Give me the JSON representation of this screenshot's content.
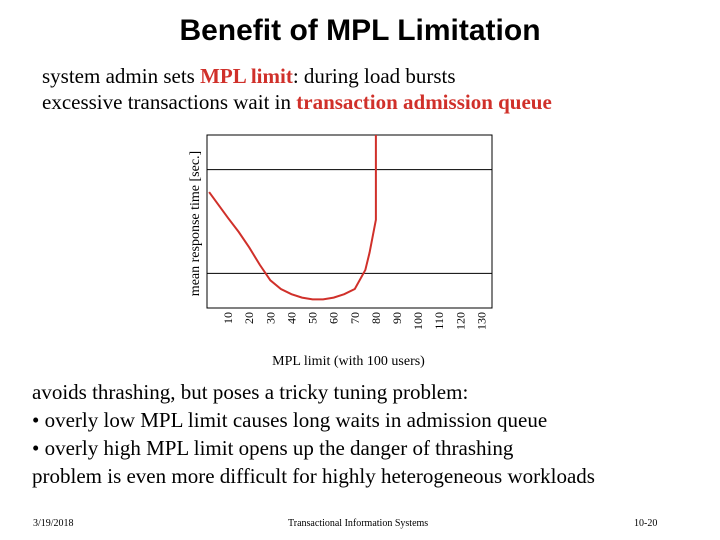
{
  "slide": {
    "title": "Benefit of MPL Limitation",
    "intro": {
      "line1_a": "system admin sets ",
      "line1_hl": "MPL limit",
      "line1_b": ": during load bursts",
      "line2_a": "excessive transactions wait in ",
      "line2_hl": "transaction admission queue"
    },
    "body_lines": [
      "avoids thrashing, but poses a tricky tuning problem:",
      "• overly low MPL limit causes long waits in admission queue",
      "• overly high MPL limit opens up the danger of thrashing",
      "problem is even more difficult for highly heterogeneous workloads"
    ],
    "footer": {
      "date": "3/19/2018",
      "center": "Transactional Information Systems",
      "page": "10-20"
    },
    "colors": {
      "highlight": "#d0302a",
      "curve": "#d0302a"
    }
  },
  "chart_data": {
    "type": "line",
    "xlabel": "MPL limit (with 100 users)",
    "ylabel": "mean response time [sec.]",
    "x_ticks": [
      "10",
      "20",
      "30",
      "40",
      "50",
      "60",
      "70",
      "80",
      "90",
      "100",
      "110",
      "120",
      "130"
    ],
    "xlim": [
      0,
      135
    ],
    "ylim": [
      0,
      1
    ],
    "series": [
      {
        "x": [
          1,
          10,
          15,
          20,
          25,
          30,
          35,
          40,
          45,
          50,
          55,
          60,
          65,
          70,
          75,
          77,
          80,
          80,
          80
        ],
        "y": [
          0.67,
          0.52,
          0.44,
          0.35,
          0.25,
          0.16,
          0.11,
          0.08,
          0.06,
          0.05,
          0.05,
          0.06,
          0.08,
          0.11,
          0.22,
          0.32,
          0.51,
          0.75,
          1.0
        ]
      }
    ],
    "grid": "horizontal",
    "legend": "none"
  }
}
